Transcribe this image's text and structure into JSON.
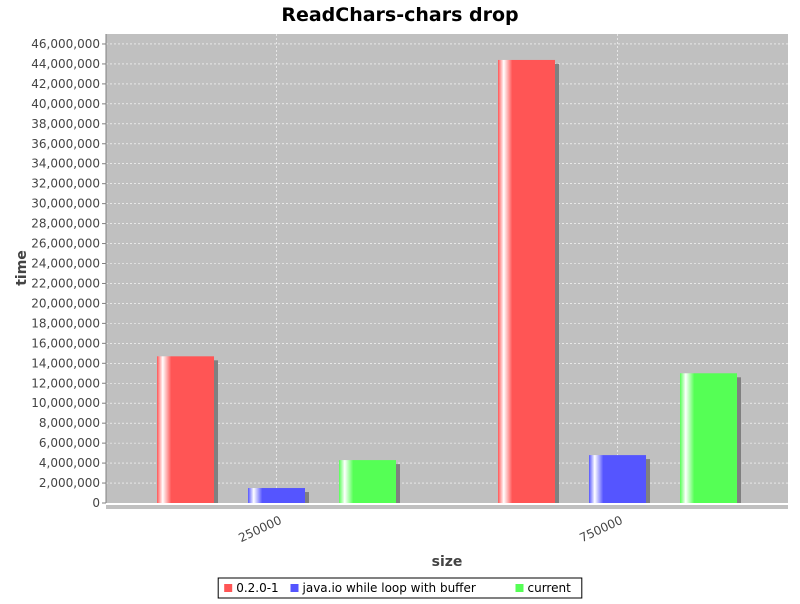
{
  "chart_data": {
    "type": "bar",
    "title": "ReadChars-chars drop",
    "xlabel": "size",
    "ylabel": "time",
    "categories": [
      "250000",
      "750000"
    ],
    "series": [
      {
        "name": "0.2.0-1",
        "values": [
          14700000,
          44400000
        ]
      },
      {
        "name": "java.io while loop with buffer",
        "values": [
          1500000,
          4800000
        ]
      },
      {
        "name": "current",
        "values": [
          4300000,
          13000000
        ]
      }
    ],
    "ylim": [
      0,
      47000000
    ],
    "yticks": [
      0,
      2000000,
      4000000,
      6000000,
      8000000,
      10000000,
      12000000,
      14000000,
      16000000,
      18000000,
      20000000,
      22000000,
      24000000,
      26000000,
      28000000,
      30000000,
      32000000,
      34000000,
      36000000,
      38000000,
      40000000,
      42000000,
      44000000,
      46000000
    ],
    "ytick_labels": [
      "0",
      "2,000,000",
      "4,000,000",
      "6,000,000",
      "8,000,000",
      "10,000,000",
      "12,000,000",
      "14,000,000",
      "16,000,000",
      "18,000,000",
      "20,000,000",
      "22,000,000",
      "24,000,000",
      "26,000,000",
      "28,000,000",
      "30,000,000",
      "32,000,000",
      "34,000,000",
      "36,000,000",
      "38,000,000",
      "40,000,000",
      "42,000,000",
      "44,000,000",
      "46,000,000"
    ],
    "grid": true,
    "legend_position": "bottom",
    "colors": [
      "#ff5555",
      "#5555ff",
      "#55ff55"
    ],
    "plot_background": "#c0c0c0"
  }
}
